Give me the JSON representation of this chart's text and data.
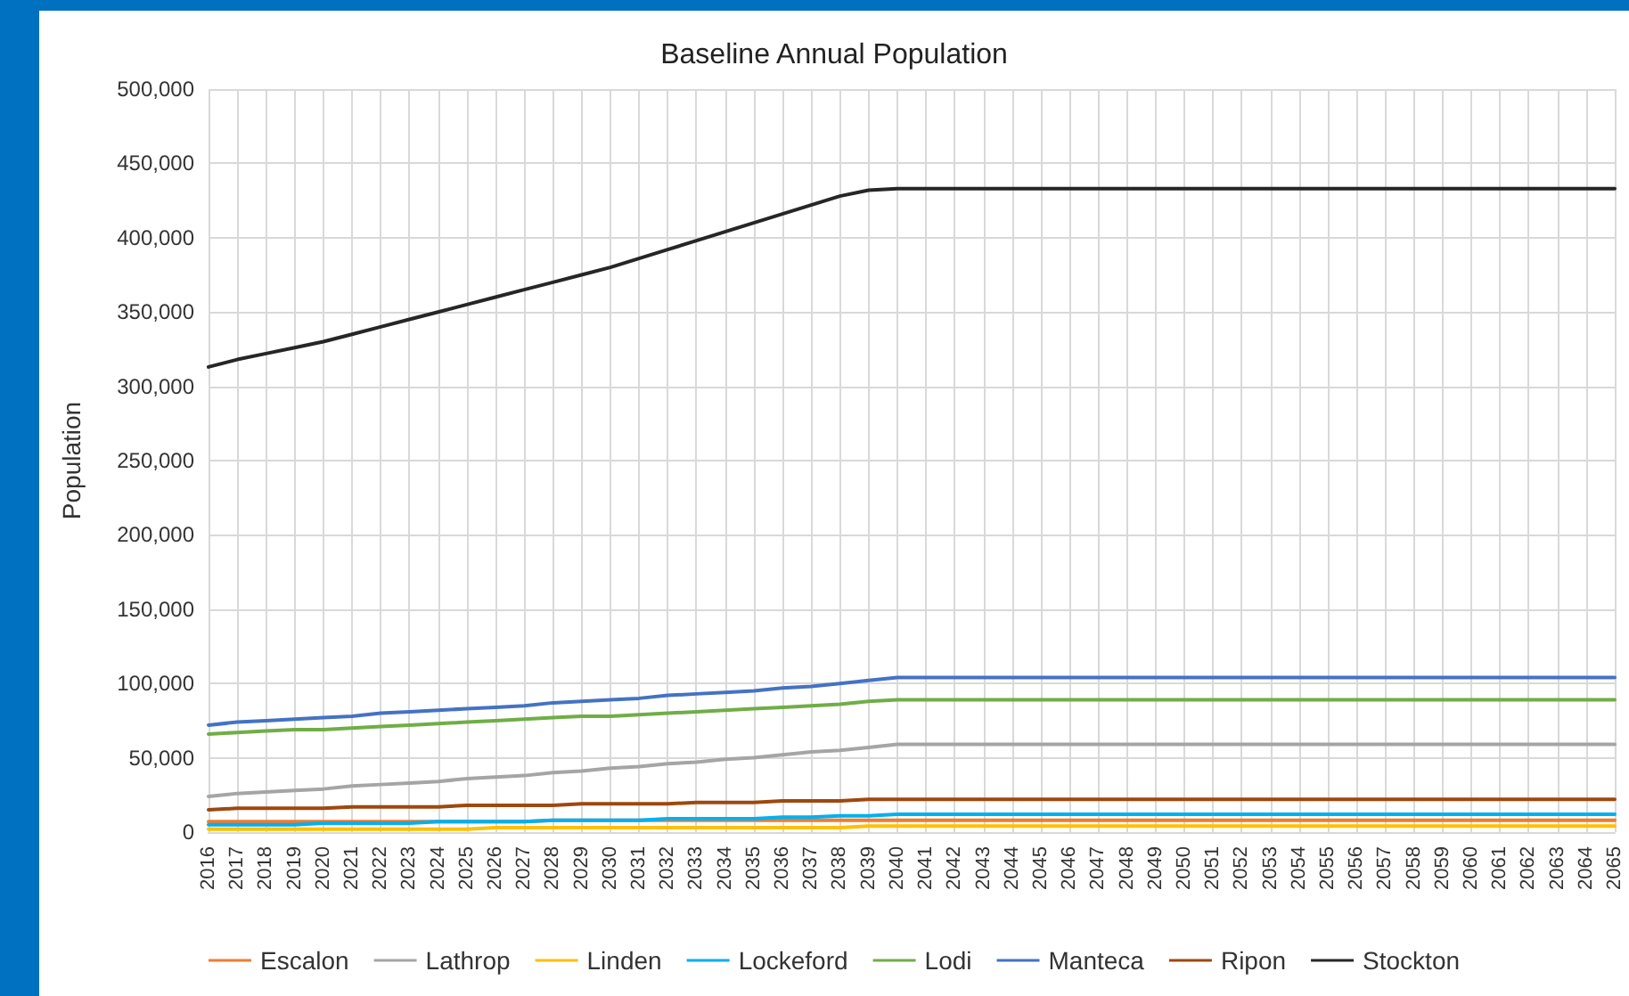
{
  "chart_data": {
    "type": "line",
    "title": "Baseline Annual Population",
    "ylabel": "Population",
    "categories": [
      "2016",
      "2017",
      "2018",
      "2019",
      "2020",
      "2021",
      "2022",
      "2023",
      "2024",
      "2025",
      "2026",
      "2027",
      "2028",
      "2029",
      "2030",
      "2031",
      "2032",
      "2033",
      "2034",
      "2035",
      "2036",
      "2037",
      "2038",
      "2039",
      "2040",
      "2041",
      "2042",
      "2043",
      "2044",
      "2045",
      "2046",
      "2047",
      "2048",
      "2049",
      "2050",
      "2051",
      "2052",
      "2053",
      "2054",
      "2055",
      "2056",
      "2057",
      "2058",
      "2059",
      "2060",
      "2061",
      "2062",
      "2063",
      "2064",
      "2065"
    ],
    "series": [
      {
        "name": "Escalon",
        "color": "#ed7d31",
        "values": [
          7000,
          7000,
          7000,
          7000,
          7000,
          7000,
          7000,
          7000,
          7000,
          7000,
          7000,
          7000,
          8000,
          8000,
          8000,
          8000,
          8000,
          8000,
          8000,
          8000,
          8000,
          8000,
          8000,
          8000,
          8000,
          8000,
          8000,
          8000,
          8000,
          8000,
          8000,
          8000,
          8000,
          8000,
          8000,
          8000,
          8000,
          8000,
          8000,
          8000,
          8000,
          8000,
          8000,
          8000,
          8000,
          8000,
          8000,
          8000,
          8000,
          8000
        ]
      },
      {
        "name": "Lathrop",
        "color": "#a5a5a5",
        "values": [
          24000,
          26000,
          27000,
          28000,
          29000,
          31000,
          32000,
          33000,
          34000,
          36000,
          37000,
          38000,
          40000,
          41000,
          43000,
          44000,
          46000,
          47000,
          49000,
          50000,
          52000,
          54000,
          55000,
          57000,
          59000,
          59000,
          59000,
          59000,
          59000,
          59000,
          59000,
          59000,
          59000,
          59000,
          59000,
          59000,
          59000,
          59000,
          59000,
          59000,
          59000,
          59000,
          59000,
          59000,
          59000,
          59000,
          59000,
          59000,
          59000,
          59000
        ]
      },
      {
        "name": "Linden",
        "color": "#ffc000",
        "values": [
          2000,
          2000,
          2000,
          2000,
          2000,
          2000,
          2000,
          2000,
          2000,
          2000,
          3000,
          3000,
          3000,
          3000,
          3000,
          3000,
          3000,
          3000,
          3000,
          3000,
          3000,
          3000,
          3000,
          4000,
          4000,
          4000,
          4000,
          4000,
          4000,
          4000,
          4000,
          4000,
          4000,
          4000,
          4000,
          4000,
          4000,
          4000,
          4000,
          4000,
          4000,
          4000,
          4000,
          4000,
          4000,
          4000,
          4000,
          4000,
          4000,
          4000
        ]
      },
      {
        "name": "Lockeford",
        "color": "#00b0f0",
        "values": [
          5000,
          5000,
          5000,
          5000,
          6000,
          6000,
          6000,
          6000,
          7000,
          7000,
          7000,
          7000,
          8000,
          8000,
          8000,
          8000,
          9000,
          9000,
          9000,
          9000,
          10000,
          10000,
          11000,
          11000,
          12000,
          12000,
          12000,
          12000,
          12000,
          12000,
          12000,
          12000,
          12000,
          12000,
          12000,
          12000,
          12000,
          12000,
          12000,
          12000,
          12000,
          12000,
          12000,
          12000,
          12000,
          12000,
          12000,
          12000,
          12000,
          12000
        ]
      },
      {
        "name": "Lodi",
        "color": "#70ad47",
        "values": [
          66000,
          67000,
          68000,
          69000,
          69000,
          70000,
          71000,
          72000,
          73000,
          74000,
          75000,
          76000,
          77000,
          78000,
          78000,
          79000,
          80000,
          81000,
          82000,
          83000,
          84000,
          85000,
          86000,
          88000,
          89000,
          89000,
          89000,
          89000,
          89000,
          89000,
          89000,
          89000,
          89000,
          89000,
          89000,
          89000,
          89000,
          89000,
          89000,
          89000,
          89000,
          89000,
          89000,
          89000,
          89000,
          89000,
          89000,
          89000,
          89000,
          89000
        ]
      },
      {
        "name": "Manteca",
        "color": "#4472c4",
        "values": [
          72000,
          74000,
          75000,
          76000,
          77000,
          78000,
          80000,
          81000,
          82000,
          83000,
          84000,
          85000,
          87000,
          88000,
          89000,
          90000,
          92000,
          93000,
          94000,
          95000,
          97000,
          98000,
          100000,
          102000,
          104000,
          104000,
          104000,
          104000,
          104000,
          104000,
          104000,
          104000,
          104000,
          104000,
          104000,
          104000,
          104000,
          104000,
          104000,
          104000,
          104000,
          104000,
          104000,
          104000,
          104000,
          104000,
          104000,
          104000,
          104000,
          104000
        ]
      },
      {
        "name": "Ripon",
        "color": "#9e480e",
        "values": [
          15000,
          16000,
          16000,
          16000,
          16000,
          17000,
          17000,
          17000,
          17000,
          18000,
          18000,
          18000,
          18000,
          19000,
          19000,
          19000,
          19000,
          20000,
          20000,
          20000,
          21000,
          21000,
          21000,
          22000,
          22000,
          22000,
          22000,
          22000,
          22000,
          22000,
          22000,
          22000,
          22000,
          22000,
          22000,
          22000,
          22000,
          22000,
          22000,
          22000,
          22000,
          22000,
          22000,
          22000,
          22000,
          22000,
          22000,
          22000,
          22000,
          22000
        ]
      },
      {
        "name": "Stockton",
        "color": "#262626",
        "values": [
          313000,
          318000,
          322000,
          326000,
          330000,
          335000,
          340000,
          345000,
          350000,
          355000,
          360000,
          365000,
          370000,
          375000,
          380000,
          386000,
          392000,
          398000,
          404000,
          410000,
          416000,
          422000,
          428000,
          432000,
          433000,
          433000,
          433000,
          433000,
          433000,
          433000,
          433000,
          433000,
          433000,
          433000,
          433000,
          433000,
          433000,
          433000,
          433000,
          433000,
          433000,
          433000,
          433000,
          433000,
          433000,
          433000,
          433000,
          433000,
          433000,
          433000
        ]
      }
    ],
    "ylim": [
      0,
      500000
    ],
    "yticks": [
      0,
      {
        "value": 50000,
        "label": "50,000"
      },
      {
        "value": 100000,
        "label": "100,000"
      },
      {
        "value": 150000,
        "label": "150,000"
      },
      {
        "value": 200000,
        "label": "200,000"
      },
      {
        "value": 250000,
        "label": "250,000"
      },
      {
        "value": 300000,
        "label": "300,000"
      },
      {
        "value": 350000,
        "label": "350,000"
      },
      {
        "value": 400000,
        "label": "400,000"
      },
      {
        "value": 450000,
        "label": "450,000"
      },
      {
        "value": 500000,
        "label": "500,000"
      }
    ],
    "grid": true,
    "legend": "bottom",
    "marker": "none",
    "line_style": "solid"
  }
}
